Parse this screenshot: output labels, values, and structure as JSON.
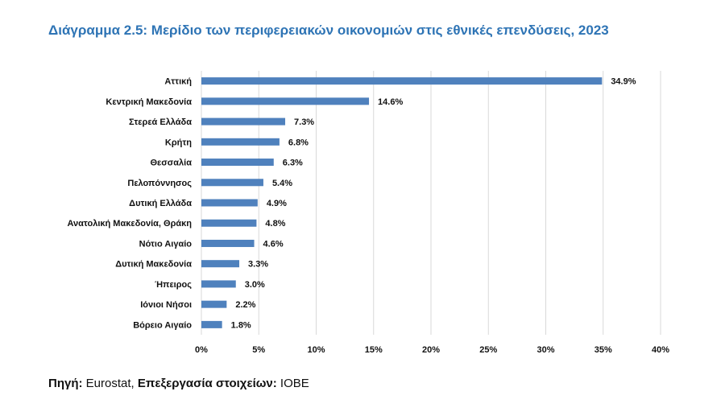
{
  "chart_data": {
    "type": "bar",
    "orientation": "horizontal",
    "title": "Διάγραμμα 2.5: Μερίδιο των περιφερειακών οικονομιών στις εθνικές επενδύσεις, 2023",
    "categories": [
      "Αττική",
      "Κεντρική Μακεδονία",
      "Στερεά Ελλάδα",
      "Κρήτη",
      "Θεσσαλία",
      "Πελοπόννησος",
      "Δυτική Ελλάδα",
      "Ανατολική Μακεδονία, Θράκη",
      "Νότιο Αιγαίο",
      "Δυτική Μακεδονία",
      "Ήπειρος",
      "Ιόνιοι Νήσοι",
      "Βόρειο Αιγαίο"
    ],
    "values": [
      34.9,
      14.6,
      7.3,
      6.8,
      6.3,
      5.4,
      4.9,
      4.8,
      4.6,
      3.3,
      3.0,
      2.2,
      1.8
    ],
    "value_labels": [
      "34.9%",
      "14.6%",
      "7.3%",
      "6.8%",
      "6.3%",
      "5.4%",
      "4.9%",
      "4.8%",
      "4.6%",
      "3.3%",
      "3.0%",
      "2.2%",
      "1.8%"
    ],
    "x_ticks": [
      0,
      5,
      10,
      15,
      20,
      25,
      30,
      35,
      40
    ],
    "x_tick_labels": [
      "0%",
      "5%",
      "10%",
      "15%",
      "20%",
      "25%",
      "30%",
      "35%",
      "40%"
    ],
    "xlim": [
      0,
      40
    ],
    "grid": "vertical",
    "bar_color": "#4F81BD",
    "grid_color": "#D9D9D9"
  },
  "source": {
    "label1": "Πηγή:",
    "text1": " Eurostat, ",
    "label2": "Επεξεργασία στοιχείων:",
    "text2": " IOBE"
  }
}
